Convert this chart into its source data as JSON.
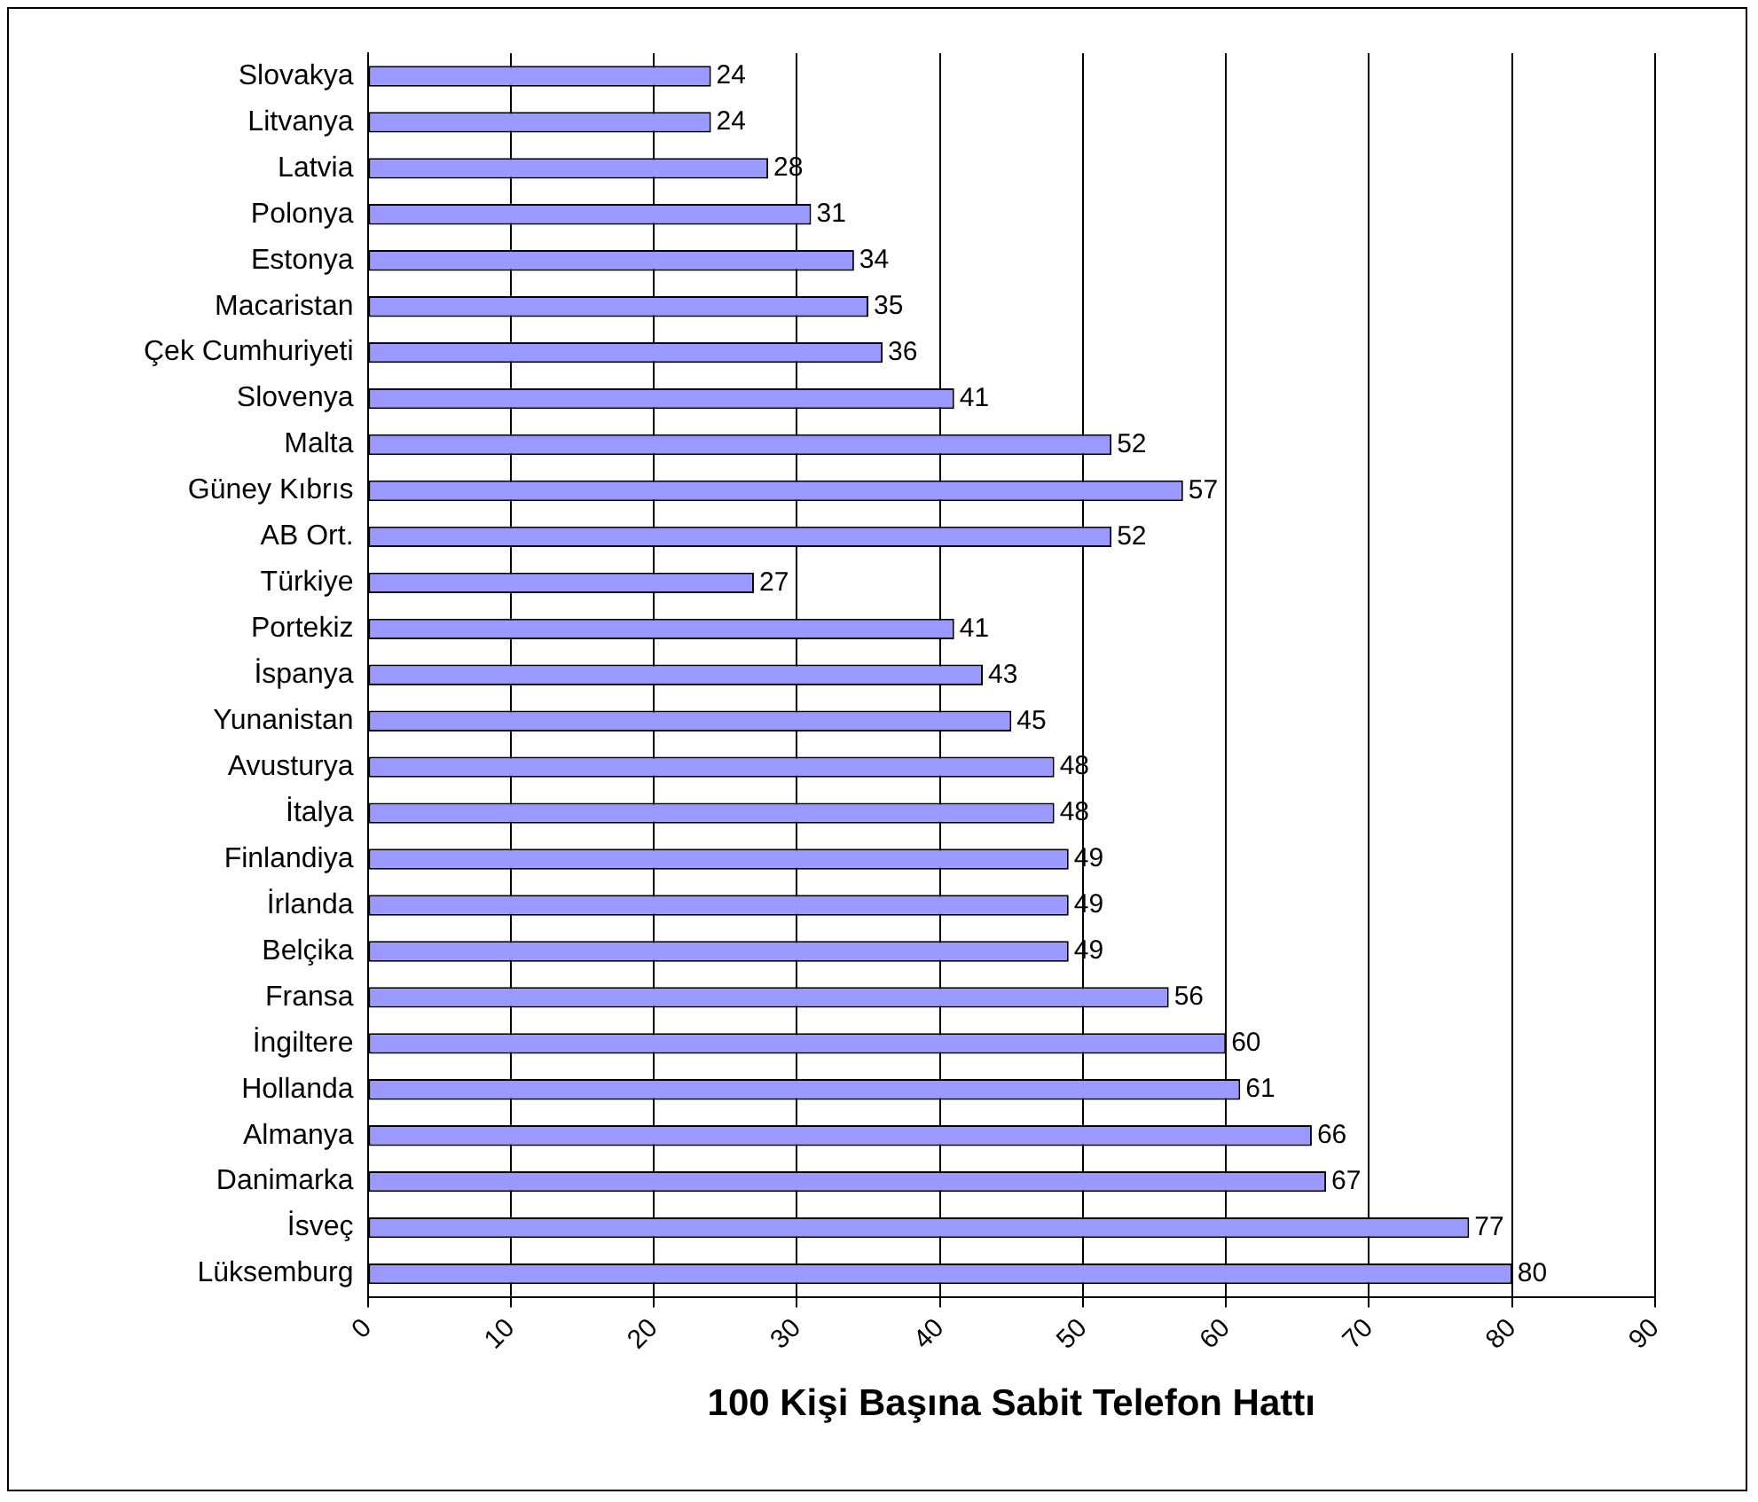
{
  "chart_data": {
    "type": "bar",
    "orientation": "horizontal",
    "xlabel": "100 Kişi Başına Sabit Telefon Hattı",
    "categories": [
      "Slovakya",
      "Litvanya",
      "Latvia",
      "Polonya",
      "Estonya",
      "Macaristan",
      "Çek Cumhuriyeti",
      "Slovenya",
      "Malta",
      "Güney Kıbrıs",
      "AB Ort.",
      "Türkiye",
      "Portekiz",
      "İspanya",
      "Yunanistan",
      "Avusturya",
      "İtalya",
      "Finlandiya",
      "İrlanda",
      "Belçika",
      "Fransa",
      "İngiltere",
      "Hollanda",
      "Almanya",
      "Danimarka",
      "İsveç",
      "Lüksemburg"
    ],
    "values": [
      24,
      24,
      28,
      31,
      34,
      35,
      36,
      41,
      52,
      57,
      52,
      27,
      41,
      43,
      45,
      48,
      48,
      49,
      49,
      49,
      56,
      60,
      61,
      66,
      67,
      77,
      80
    ],
    "color": "#9999ff",
    "xlim": [
      0,
      90
    ],
    "xticks": [
      0,
      10,
      20,
      30,
      40,
      50,
      60,
      70,
      80,
      90
    ],
    "grid": "x",
    "data_labels": true,
    "legend": false
  }
}
